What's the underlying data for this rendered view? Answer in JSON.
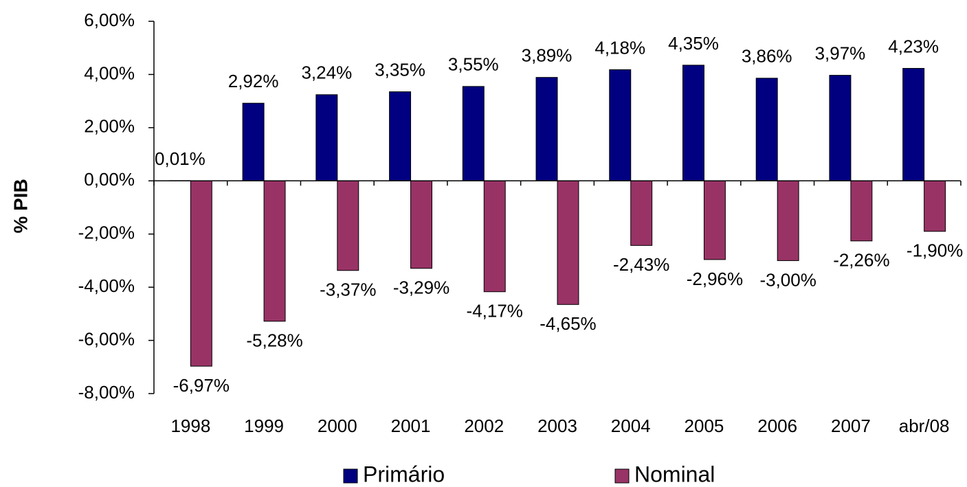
{
  "chart_data": {
    "type": "bar",
    "ylabel": "% PIB",
    "categories": [
      "1998",
      "1999",
      "2000",
      "2001",
      "2002",
      "2003",
      "2004",
      "2005",
      "2006",
      "2007",
      "abr/08"
    ],
    "series": [
      {
        "name": "Primário",
        "color": "#000080",
        "values": [
          0.01,
          2.92,
          3.24,
          3.35,
          3.55,
          3.89,
          4.18,
          4.35,
          3.86,
          3.97,
          4.23
        ],
        "value_labels": [
          "0,01%",
          "2,92%",
          "3,24%",
          "3,35%",
          "3,55%",
          "3,89%",
          "4,18%",
          "4,35%",
          "3,86%",
          "3,97%",
          "4,23%"
        ]
      },
      {
        "name": "Nominal",
        "color": "#993366",
        "values": [
          -6.97,
          -5.28,
          -3.37,
          -3.29,
          -4.17,
          -4.65,
          -2.43,
          -2.96,
          -3.0,
          -2.26,
          -1.9
        ],
        "value_labels": [
          "-6,97%",
          "-5,28%",
          "-3,37%",
          "-3,29%",
          "-4,17%",
          "-4,65%",
          "-2,43%",
          "-2,96%",
          "-3,00%",
          "-2,26%",
          "-1,90%"
        ]
      }
    ],
    "ylim": [
      -8,
      6
    ],
    "yticks": [
      {
        "value": -8,
        "label": "-8,00%"
      },
      {
        "value": -6,
        "label": "-6,00%"
      },
      {
        "value": -4,
        "label": "-4,00%"
      },
      {
        "value": -2,
        "label": "-2,00%"
      },
      {
        "value": 0,
        "label": "0,00%"
      },
      {
        "value": 2,
        "label": "2,00%"
      },
      {
        "value": 4,
        "label": "4,00%"
      },
      {
        "value": 6,
        "label": "6,00%"
      }
    ],
    "grid": false,
    "legend": "bottom"
  }
}
